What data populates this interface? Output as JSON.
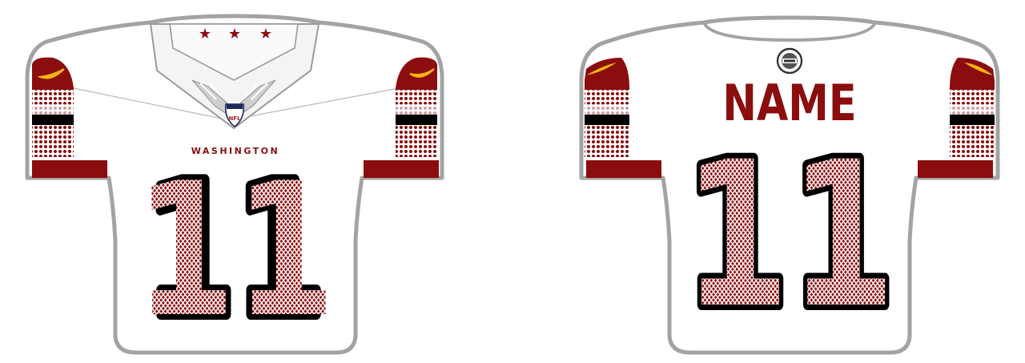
{
  "front": {
    "wordmark": "WASHINGTON",
    "number": "11",
    "shield_text": "NFL",
    "collar_stars": [
      "★",
      "★",
      "★"
    ]
  },
  "back": {
    "name": "NAME",
    "number": "11"
  },
  "colors": {
    "burgundy": "#8b0d0d",
    "gold": "#f3b510",
    "black": "#000000",
    "outline": "#a3a3a3",
    "body": "#ffffff",
    "collar_fill": "#f3f3f3",
    "shield_navy": "#1b2a5a"
  },
  "icons": {
    "sleeve_logo": "swoosh-icon",
    "shield": "nfl-shield-icon",
    "patch": "round-patch-icon"
  }
}
